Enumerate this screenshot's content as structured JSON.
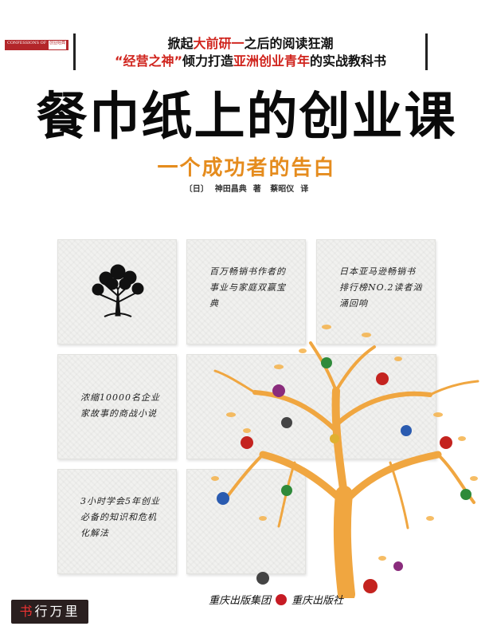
{
  "series_badge": {
    "text": "CONFESSIONS OF",
    "tag": "创业经典"
  },
  "tagline": {
    "line1_pre": "掀起",
    "line1_hl": "大前研一",
    "line1_post": "之后的阅读狂潮",
    "line2_hl1": "“经营之神”",
    "line2_mid": "倾力打造",
    "line2_hl2": "亚洲创业青年",
    "line2_post": "的实战教科书",
    "highlight_color": "#d0241d"
  },
  "title": "餐巾纸上的创业课",
  "subtitle": "一个成功者的告白",
  "credits": {
    "author_prefix": "〔日〕",
    "author": "神田昌典",
    "author_role": "著",
    "translator": "蔡昭仪",
    "translator_role": "译"
  },
  "napkins": [
    {
      "id": "tree",
      "text": ""
    },
    {
      "id": "bestseller",
      "text": "百万畅销书作者的事业与家庭双赢宝典"
    },
    {
      "id": "ranking",
      "text": "日本亚马逊畅销书排行榜NO.2读者汹涌回响"
    },
    {
      "id": "story",
      "text": "浓缩10000名企业家故事的商战小说"
    },
    {
      "id": "blank",
      "text": ""
    },
    {
      "id": "skills",
      "text": "3小时学会5年创业必备的知识和危机化解法"
    },
    {
      "id": "blank2",
      "text": ""
    }
  ],
  "publisher": {
    "group": "重庆出版集团",
    "press": "重庆出版社"
  },
  "watermark": {
    "first": "书",
    "rest": "行万里"
  },
  "colors": {
    "subtitle": "#e58c1e",
    "tree": "#f0a640"
  }
}
